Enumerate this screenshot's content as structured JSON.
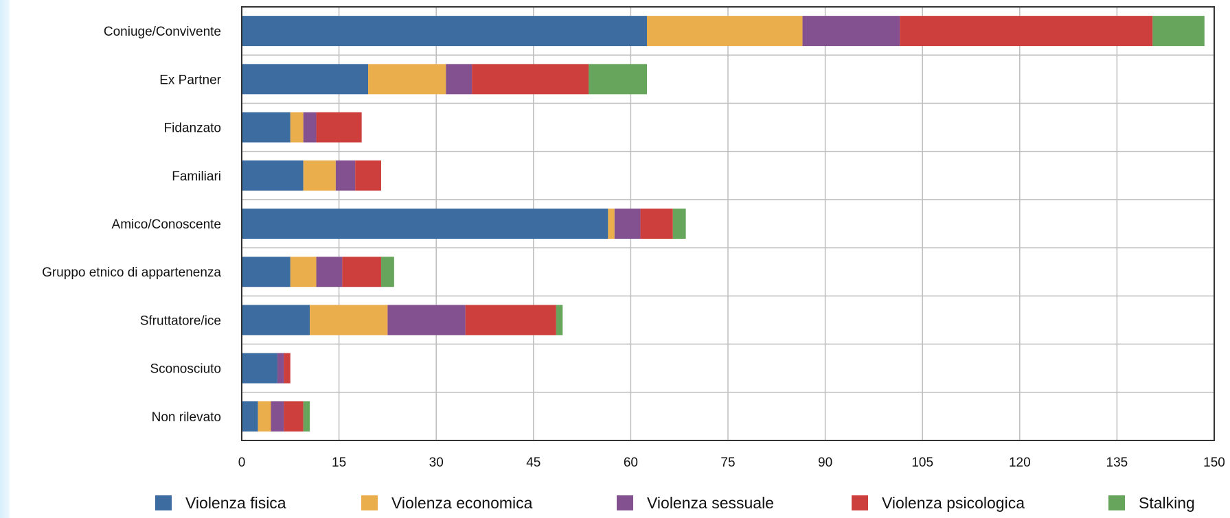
{
  "chart_data": {
    "type": "bar",
    "orientation": "horizontal",
    "stacked": true,
    "categories": [
      "Coniuge/Convivente",
      "Ex Partner",
      "Fidanzato",
      "Familiari",
      "Amico/Conoscente",
      "Gruppo etnico di appartenenza",
      "Sfruttatore/ice",
      "Sconosciuto",
      "Non rilevato"
    ],
    "series": [
      {
        "name": "Violenza fisica",
        "color": "#3c6ca0",
        "values": [
          62.5,
          19.5,
          7.5,
          9.5,
          56.5,
          7.5,
          10.5,
          5.5,
          2.5
        ]
      },
      {
        "name": "Violenza economica",
        "color": "#ebae4c",
        "values": [
          24,
          12,
          2,
          5,
          1,
          4,
          12,
          0,
          2
        ]
      },
      {
        "name": "Violenza sessuale",
        "color": "#845190",
        "values": [
          15,
          4,
          2,
          3,
          4,
          4,
          12,
          1,
          2
        ]
      },
      {
        "name": "Violenza psicologica",
        "color": "#cc3f3d",
        "values": [
          39,
          18,
          7,
          4,
          5,
          6,
          14,
          1,
          3
        ]
      },
      {
        "name": "Stalking",
        "color": "#68a55c",
        "values": [
          8,
          9,
          0,
          0,
          2,
          2,
          1,
          0,
          1
        ]
      }
    ],
    "xlim": [
      0,
      150
    ],
    "x_ticks": [
      0,
      15,
      30,
      45,
      60,
      75,
      90,
      105,
      120,
      135,
      150
    ],
    "grid": true,
    "legend_position": "bottom",
    "title": "",
    "xlabel": "",
    "ylabel": ""
  }
}
